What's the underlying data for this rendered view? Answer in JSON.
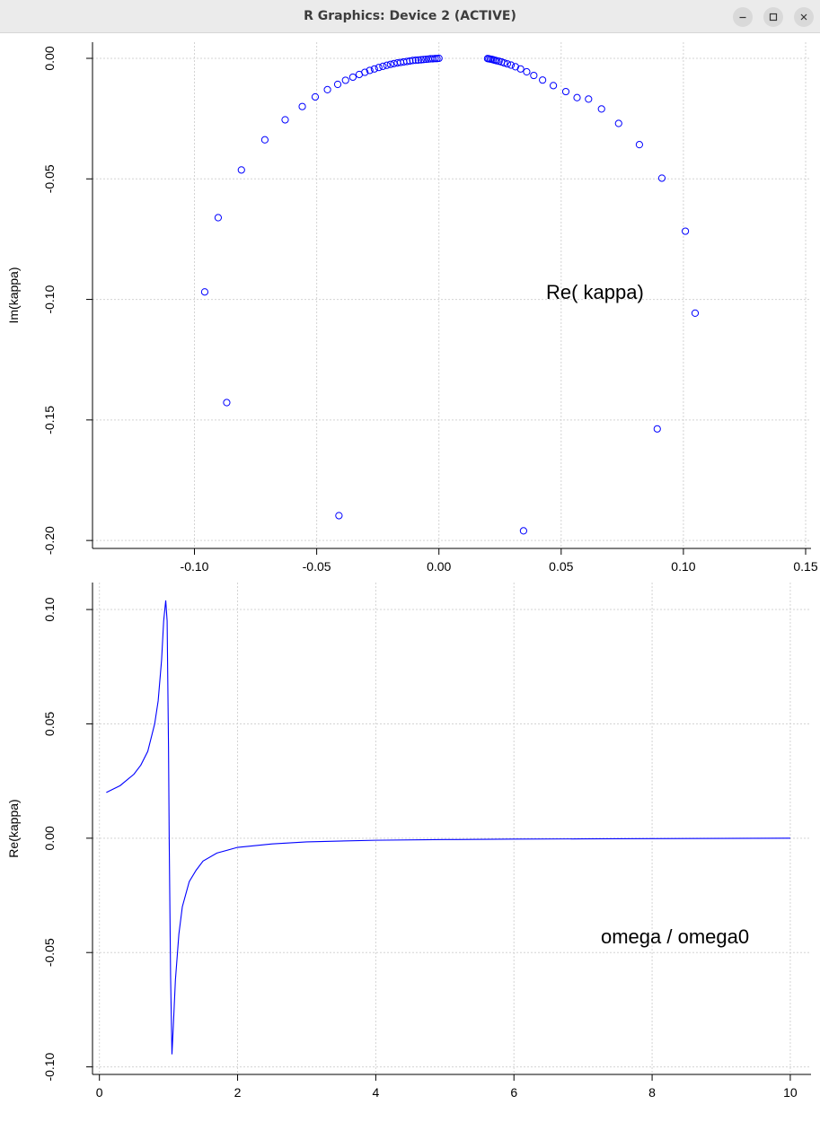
{
  "window": {
    "title": "R Graphics: Device 2 (ACTIVE)",
    "buttons": {
      "minimize": "minimize-icon",
      "maximize": "maximize-icon",
      "close": "close-icon"
    }
  },
  "colors": {
    "series": "#0000ff",
    "grid": "#d3d3d3",
    "axis": "#000000",
    "titlebar": "#ebebeb"
  },
  "chart_data": [
    {
      "type": "scatter",
      "xlabel": "",
      "ylabel": "Im(kappa)",
      "annotation": "Re( kappa)",
      "xlim": [
        -0.1417,
        0.1522
      ],
      "ylim": [
        -0.2033,
        0.0067
      ],
      "xticks": [
        "-0.10",
        "-0.05",
        "0.00",
        "0.05",
        "0.10",
        "0.15"
      ],
      "xtick_values": [
        -0.1,
        -0.05,
        0.0,
        0.05,
        0.1,
        0.15
      ],
      "yticks": [
        "-0.20",
        "-0.15",
        "-0.10",
        "-0.05",
        "0.00"
      ],
      "ytick_values": [
        -0.2,
        -0.15,
        -0.1,
        -0.05,
        0.0
      ],
      "grid": true,
      "marker": "open-circle",
      "points": [
        [
          0.0199,
          -0.0001
        ],
        [
          0.0204,
          -0.0002
        ],
        [
          0.021,
          -0.0003
        ],
        [
          0.0216,
          -0.0004
        ],
        [
          0.0222,
          -0.0006
        ],
        [
          0.0229,
          -0.0008
        ],
        [
          0.0237,
          -0.001
        ],
        [
          0.0246,
          -0.0012
        ],
        [
          0.0256,
          -0.0015
        ],
        [
          0.0267,
          -0.0019
        ],
        [
          0.028,
          -0.0023
        ],
        [
          0.0295,
          -0.0028
        ],
        [
          0.0313,
          -0.0035
        ],
        [
          0.0334,
          -0.0044
        ],
        [
          0.0359,
          -0.0056
        ],
        [
          0.0388,
          -0.0071
        ],
        [
          0.0424,
          -0.009
        ],
        [
          0.0468,
          -0.0113
        ],
        [
          0.0519,
          -0.0138
        ],
        [
          0.0565,
          -0.0163
        ],
        [
          0.0612,
          -0.0169
        ],
        [
          0.0665,
          -0.021
        ],
        [
          0.0735,
          -0.027
        ],
        [
          0.082,
          -0.0358
        ],
        [
          0.0912,
          -0.0497
        ],
        [
          0.1008,
          -0.0717
        ],
        [
          0.1048,
          -0.1057
        ],
        [
          0.0893,
          -0.1537
        ],
        [
          0.0346,
          -0.196
        ],
        [
          -0.0409,
          -0.1897
        ],
        [
          -0.0868,
          -0.1428
        ],
        [
          -0.0958,
          -0.0969
        ],
        [
          -0.0903,
          -0.0661
        ],
        [
          -0.0808,
          -0.0463
        ],
        [
          -0.0712,
          -0.0338
        ],
        [
          -0.0629,
          -0.0255
        ],
        [
          -0.0559,
          -0.02
        ],
        [
          -0.0506,
          -0.016
        ],
        [
          -0.0456,
          -0.013
        ],
        [
          -0.0414,
          -0.0108
        ],
        [
          -0.0382,
          -0.0091
        ],
        [
          -0.0352,
          -0.0078
        ],
        [
          -0.0326,
          -0.0067
        ],
        [
          -0.0303,
          -0.0058
        ],
        [
          -0.0283,
          -0.005
        ],
        [
          -0.0264,
          -0.0044
        ],
        [
          -0.0246,
          -0.0038
        ],
        [
          -0.0229,
          -0.0033
        ],
        [
          -0.0213,
          -0.0029
        ],
        [
          -0.0198,
          -0.0025
        ],
        [
          -0.0184,
          -0.0022
        ],
        [
          -0.017,
          -0.0019
        ],
        [
          -0.0157,
          -0.0017
        ],
        [
          -0.0144,
          -0.0015
        ],
        [
          -0.0131,
          -0.0013
        ],
        [
          -0.0119,
          -0.0011
        ],
        [
          -0.0107,
          -0.0009
        ],
        [
          -0.0095,
          -0.0008
        ],
        [
          -0.0084,
          -0.0007
        ],
        [
          -0.0073,
          -0.0006
        ],
        [
          -0.0063,
          -0.0005
        ],
        [
          -0.0053,
          -0.0004
        ],
        [
          -0.0043,
          -0.0003
        ],
        [
          -0.0034,
          -0.0002
        ],
        [
          -0.0025,
          -0.0002
        ],
        [
          -0.0016,
          -0.0001
        ],
        [
          -0.0008,
          -0.0001
        ],
        [
          0.0,
          0.0
        ]
      ]
    },
    {
      "type": "line",
      "xlabel": "",
      "ylabel": "Re(kappa)",
      "annotation": "omega / omega0",
      "xlim": [
        -0.1,
        10.3
      ],
      "ylim": [
        -0.1033,
        0.1118
      ],
      "xticks": [
        "0",
        "2",
        "4",
        "6",
        "8",
        "10"
      ],
      "xtick_values": [
        0,
        2,
        4,
        6,
        8,
        10
      ],
      "yticks": [
        "-0.10",
        "-0.05",
        "0.00",
        "0.05",
        "0.10"
      ],
      "ytick_values": [
        -0.1,
        -0.05,
        0.0,
        0.05,
        0.1
      ],
      "grid": true,
      "x": [
        0.1,
        0.3,
        0.5,
        0.6,
        0.7,
        0.8,
        0.85,
        0.9,
        0.93,
        0.96,
        0.98,
        1.0,
        1.01,
        1.03,
        1.05,
        1.07,
        1.1,
        1.15,
        1.2,
        1.3,
        1.4,
        1.5,
        1.7,
        2.0,
        2.5,
        3.0,
        4.0,
        5.0,
        6.0,
        7.0,
        8.0,
        9.0,
        10.0
      ],
      "y": [
        0.02,
        0.023,
        0.028,
        0.032,
        0.038,
        0.05,
        0.06,
        0.078,
        0.095,
        0.104,
        0.095,
        0.04,
        0.0,
        -0.06,
        -0.0945,
        -0.082,
        -0.062,
        -0.042,
        -0.03,
        -0.019,
        -0.014,
        -0.01,
        -0.0065,
        -0.004,
        -0.0025,
        -0.0016,
        -0.0009,
        -0.0006,
        -0.0004,
        -0.0003,
        -0.0002,
        -0.0001,
        0.0
      ]
    }
  ]
}
